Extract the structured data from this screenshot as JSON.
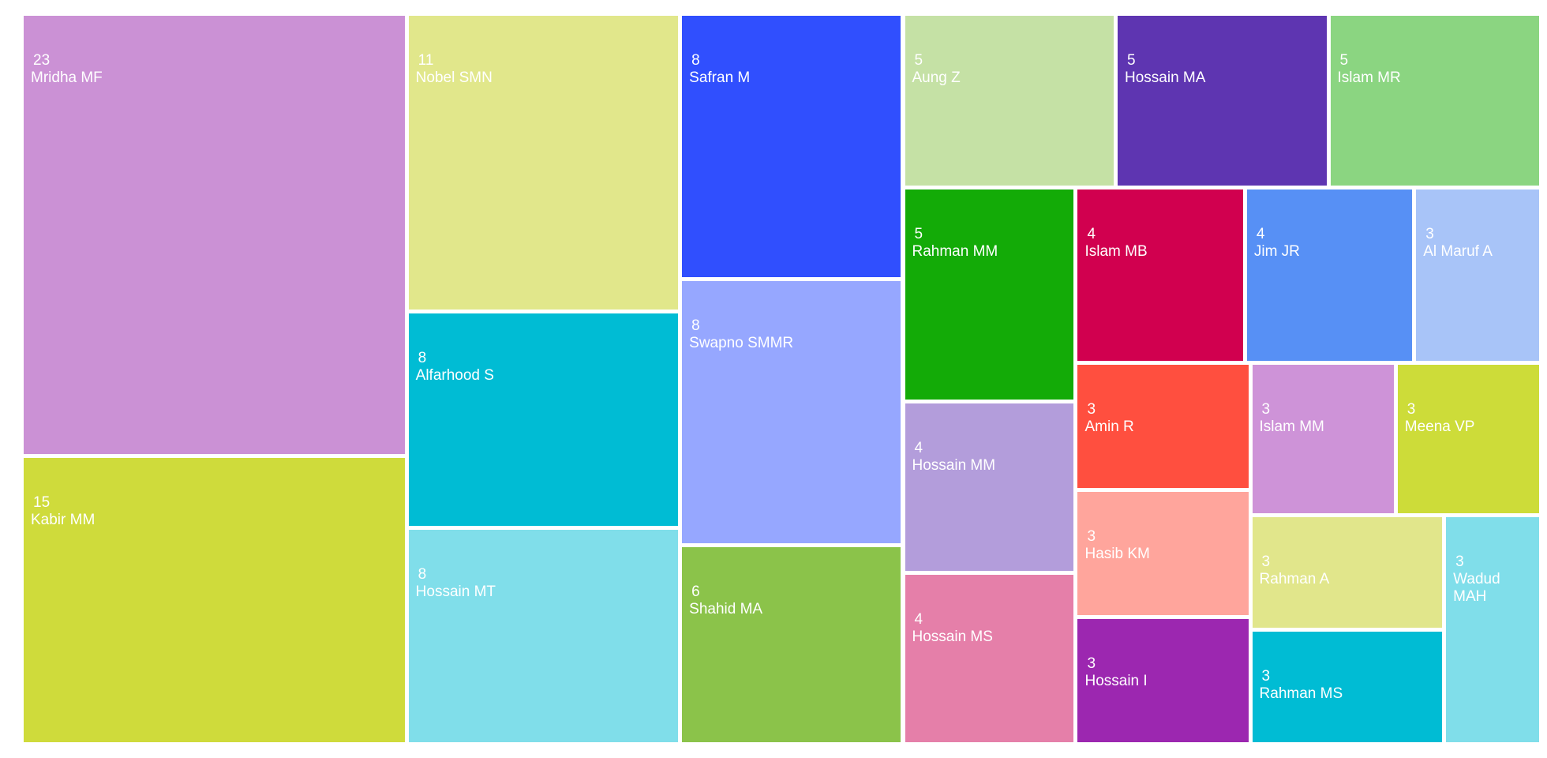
{
  "chart_data": {
    "type": "treemap",
    "categories": [
      "Mridha MF",
      "Kabir MM",
      "Nobel SMN",
      "Alfarhood S",
      "Hossain MT",
      "Safran M",
      "Swapno SMMR",
      "Shahid MA",
      "Aung Z",
      "Hossain MA",
      "Islam MR",
      "Rahman MM",
      "Hossain MM",
      "Hossain MS",
      "Islam MB",
      "Jim JR",
      "Al Maruf A",
      "Amin R",
      "Hasib KM",
      "Hossain I",
      "Islam MM",
      "Meena VP",
      "Rahman A",
      "Rahman MS",
      "Wadud MAH"
    ],
    "values": [
      23,
      15,
      11,
      8,
      8,
      8,
      8,
      6,
      5,
      5,
      5,
      5,
      4,
      4,
      4,
      4,
      3,
      3,
      3,
      3,
      3,
      3,
      3,
      3,
      3
    ],
    "colors": [
      "#cb91d5",
      "#cfdb3b",
      "#e1e78b",
      "#00bcd4",
      "#80deea",
      "#304ffe",
      "#96a7ff",
      "#8bc34a",
      "#c5e1a5",
      "#5e35b1",
      "#8bd581",
      "#13ab07",
      "#b39ddb",
      "#e57fa9",
      "#d1004f",
      "#5790f5",
      "#a8c4f8",
      "#ff4f3f",
      "#ffa59c",
      "#9c27b0",
      "#ce93d8",
      "#cddc39",
      "#e1e68b",
      "#00bcd4",
      "#80deea"
    ]
  }
}
